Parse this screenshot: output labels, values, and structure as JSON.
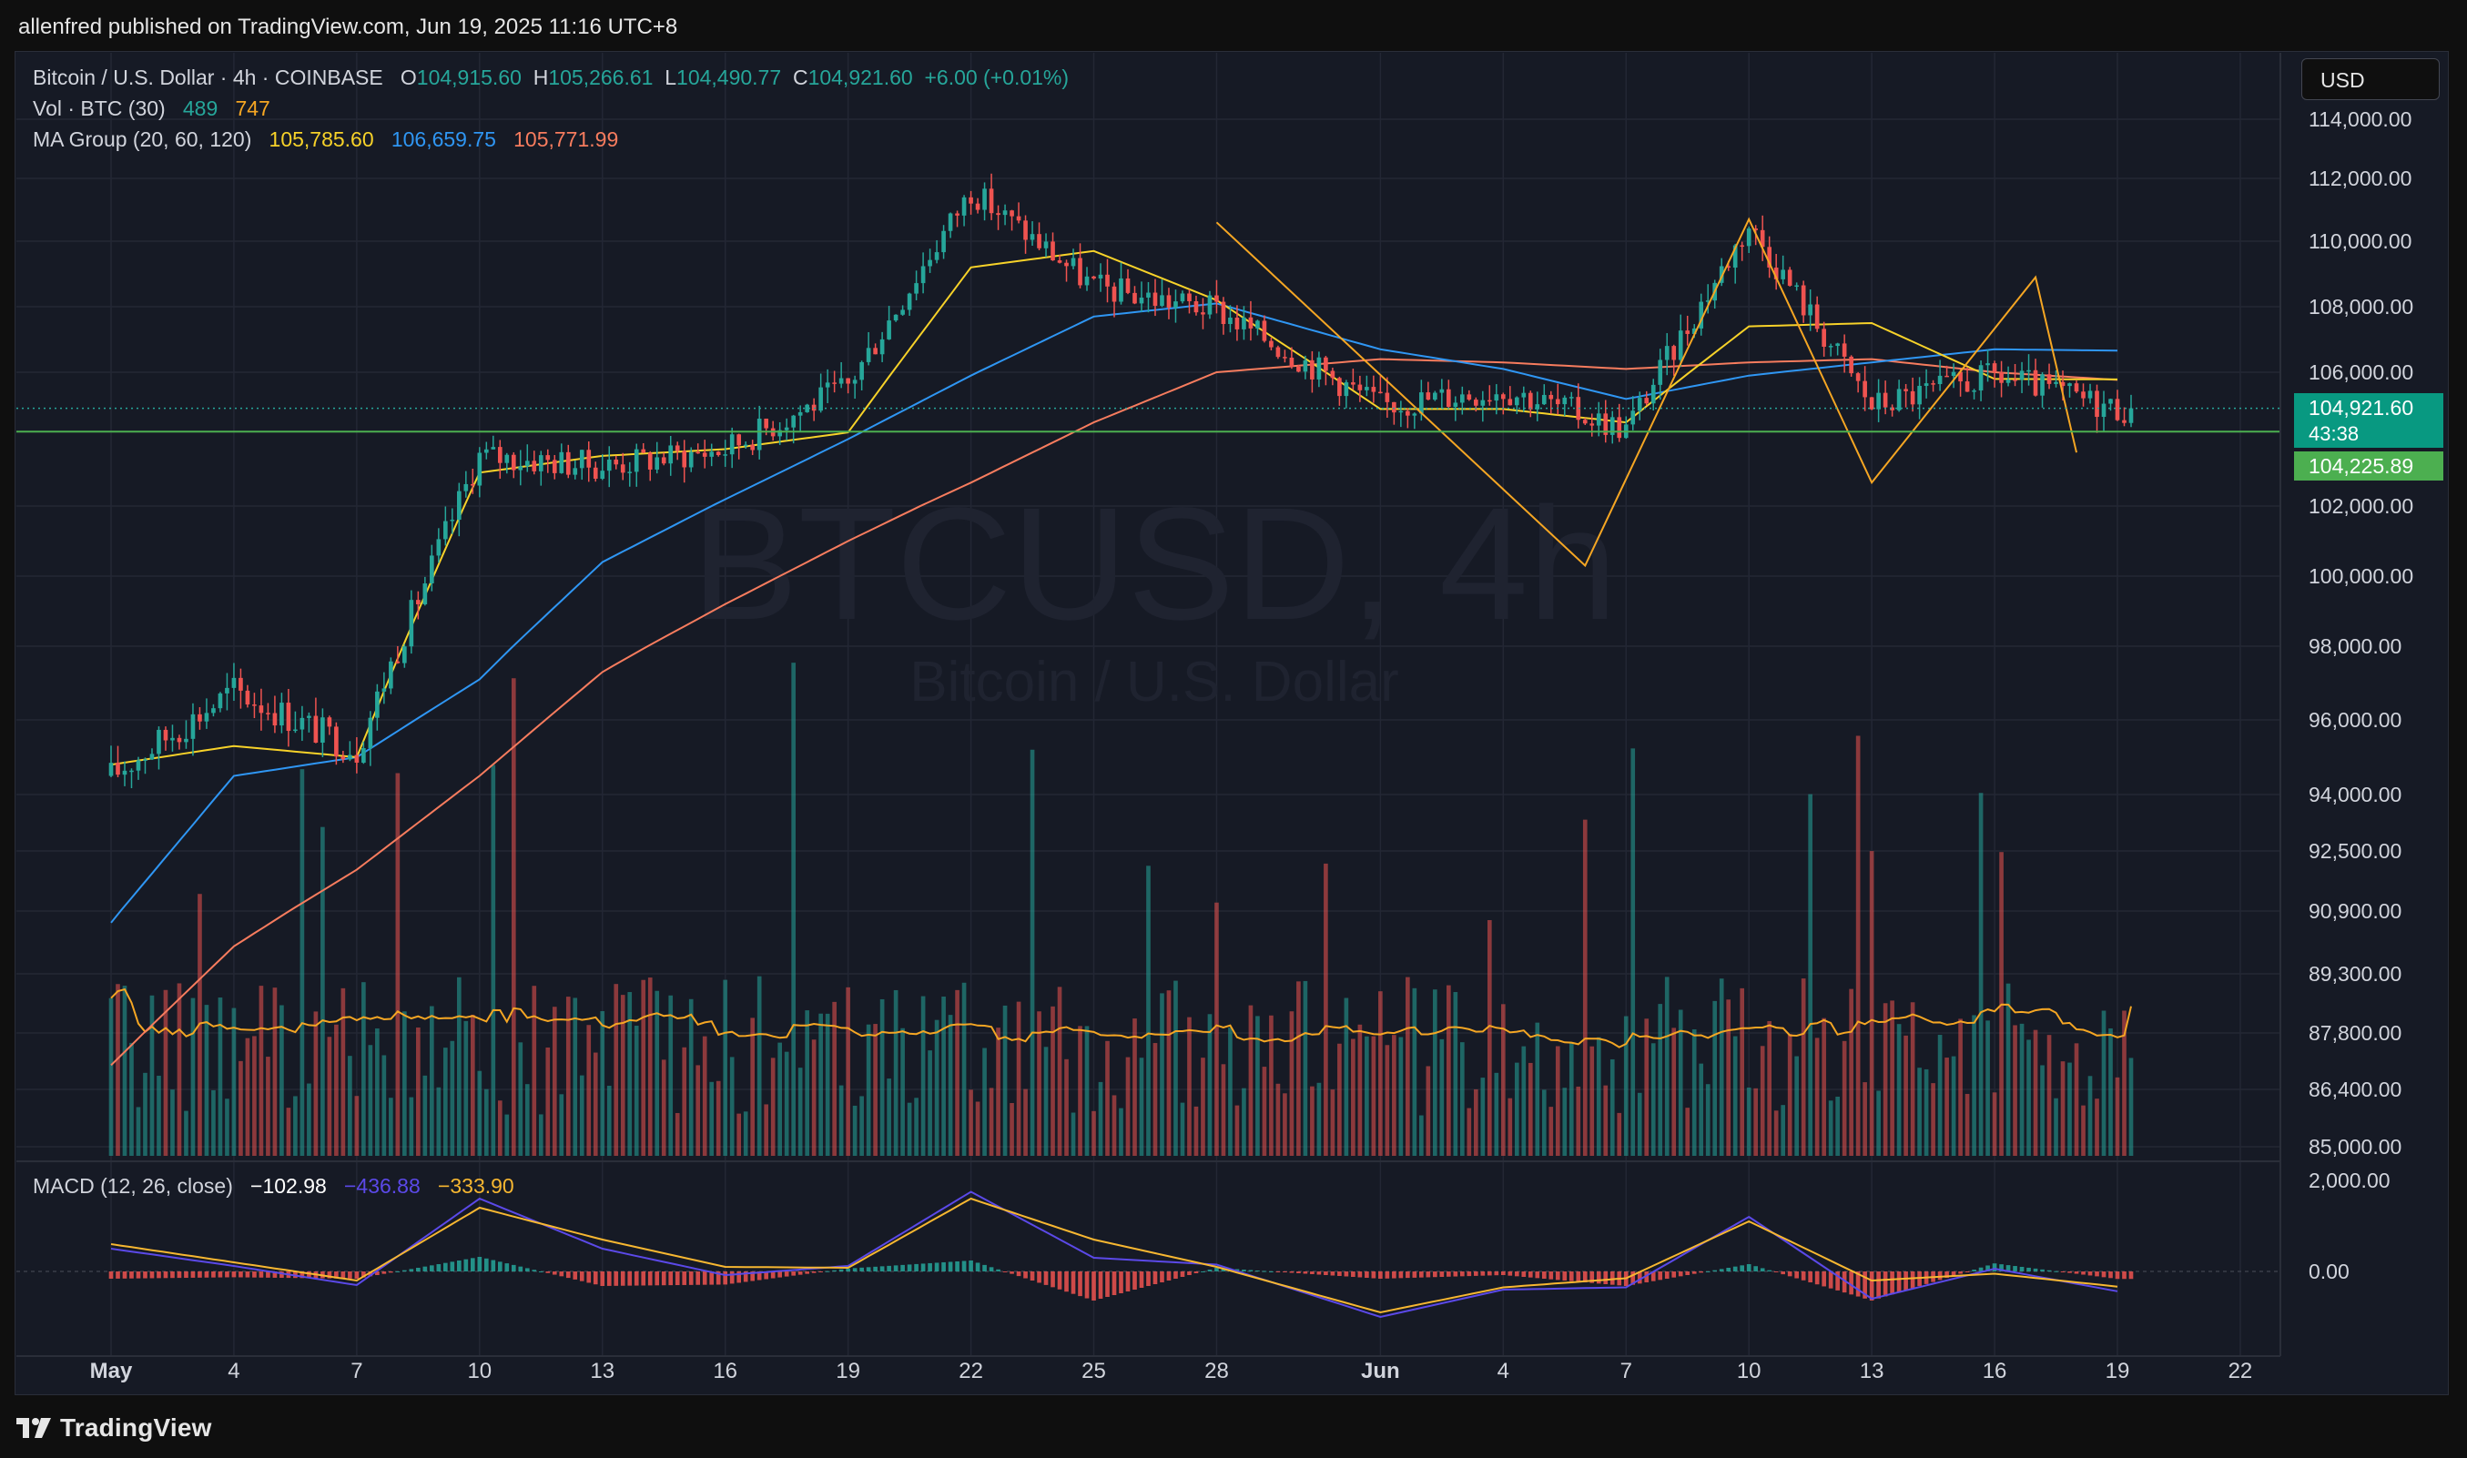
{
  "header": {
    "publisher_line": "allenfred published on TradingView.com, Jun 19, 2025 11:16 UTC+8"
  },
  "brand": {
    "logo_text": "TradingView",
    "accent": "#2962ff"
  },
  "currency_button": "USD",
  "watermark": {
    "symbol": "BTCUSD, 4h",
    "name": "Bitcoin / U.S. Dollar"
  },
  "legend": {
    "title": "Bitcoin / U.S. Dollar · 4h · COINBASE",
    "o_label": "O",
    "o": "104,915.60",
    "h_label": "H",
    "h": "105,266.61",
    "l_label": "L",
    "l": "104,490.77",
    "c_label": "C",
    "c": "104,921.60",
    "change": "+6.00 (+0.01%)",
    "vol_label": "Vol · BTC (30)",
    "vol_value": "489",
    "vol_ma": "747",
    "ma_label": "MA Group (20, 60, 120)",
    "ma20": "105,785.60",
    "ma60": "106,659.75",
    "ma120": "105,771.99",
    "macd_label": "MACD (12, 26, close)",
    "macd_hist": "−102.98",
    "macd_line": "−436.88",
    "macd_signal": "−333.90"
  },
  "price_badges": {
    "last_price": "104,921.60",
    "countdown": "43:38",
    "level_price": "104,225.89"
  },
  "colors": {
    "up": "#26a69a",
    "down": "#ef5350",
    "ma20": "#f7d229",
    "ma60": "#2f96f3",
    "ma120": "#f77c5e",
    "pattern": "#f5a623",
    "level": "#4caf50",
    "macd": "#5b49e8",
    "signal": "#f7b731",
    "vol_ma": "#f5a623"
  },
  "chart_data": [
    {
      "type": "candlestick",
      "title": "Bitcoin / U.S. Dollar · 4h · COINBASE",
      "y_ticks": [
        "114,000.00",
        "112,000.00",
        "110,000.00",
        "108,000.00",
        "106,000.00",
        "102,000.00",
        "100,000.00",
        "98,000.00",
        "96,000.00",
        "94,000.00",
        "92,500.00",
        "90,900.00",
        "89,300.00",
        "87,800.00",
        "86,400.00",
        "85,000.00"
      ],
      "x_ticks": [
        "May",
        "4",
        "7",
        "10",
        "13",
        "16",
        "19",
        "22",
        "25",
        "28",
        "Jun",
        "4",
        "7",
        "10",
        "13",
        "16",
        "19",
        "22"
      ],
      "x": [
        "May 1",
        "May 4",
        "May 7",
        "May 10",
        "May 13",
        "May 16",
        "May 19",
        "May 22",
        "May 25",
        "May 28",
        "Jun 1",
        "Jun 4",
        "Jun 7",
        "Jun 10",
        "Jun 13",
        "Jun 16",
        "Jun 19"
      ],
      "close": [
        94500,
        96800,
        95200,
        103500,
        103200,
        103700,
        105600,
        111600,
        108600,
        107900,
        105000,
        105500,
        104300,
        110500,
        105000,
        105900,
        104921.6
      ],
      "ma20": [
        94800,
        95300,
        95000,
        103000,
        103500,
        103700,
        104200,
        109200,
        109700,
        108200,
        104900,
        104900,
        104500,
        107400,
        107500,
        105800,
        105785.6
      ],
      "ma60": [
        90600,
        94500,
        95000,
        97100,
        100400,
        102200,
        104000,
        105900,
        107700,
        108100,
        106700,
        106100,
        105200,
        105900,
        106300,
        106700,
        106659.75
      ],
      "ma120": [
        87000,
        90000,
        92000,
        94500,
        97300,
        99200,
        101000,
        102700,
        104500,
        106000,
        106400,
        106300,
        106100,
        106300,
        106400,
        106000,
        105771.99
      ],
      "pattern_points": [
        {
          "x": "May 28",
          "y": 110600
        },
        {
          "x": "Jun 6",
          "y": 100300
        },
        {
          "x": "Jun 10",
          "y": 110700
        },
        {
          "x": "Jun 13",
          "y": 102700
        },
        {
          "x": "Jun 17",
          "y": 108900
        },
        {
          "x": "Jun 18",
          "y": 103600
        }
      ],
      "horizontal_level": 104225.89,
      "last_price": 104921.6
    },
    {
      "type": "bar",
      "title": "Vol · BTC (30)",
      "last_volume": 489,
      "volume_ma": 747
    },
    {
      "type": "line",
      "title": "MACD (12, 26, close)",
      "y_ticks": [
        "2,000.00",
        "0.00"
      ],
      "x": [
        "May 1",
        "May 4",
        "May 7",
        "May 10",
        "May 13",
        "May 16",
        "May 19",
        "May 22",
        "May 25",
        "May 28",
        "Jun 1",
        "Jun 4",
        "Jun 7",
        "Jun 10",
        "Jun 13",
        "Jun 16",
        "Jun 19"
      ],
      "macd": [
        500,
        120,
        -300,
        1600,
        500,
        -80,
        120,
        1750,
        300,
        150,
        -1000,
        -400,
        -350,
        1200,
        -600,
        60,
        -436.88
      ],
      "signal": [
        600,
        200,
        -200,
        1400,
        700,
        100,
        80,
        1600,
        700,
        100,
        -900,
        -350,
        -150,
        1100,
        -200,
        -50,
        -333.9
      ],
      "histogram_last": -102.98
    }
  ]
}
